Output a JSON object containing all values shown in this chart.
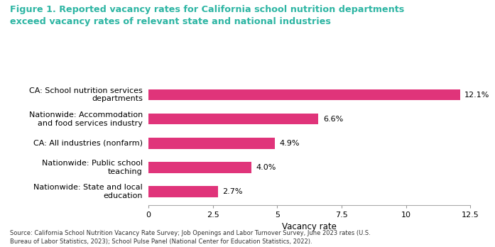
{
  "title_line1": "Figure 1. Reported vacancy rates for California school nutrition departments",
  "title_line2": "exceed vacancy rates of relevant state and national industries",
  "title_color": "#2db5a3",
  "categories": [
    "Nationwide: State and local\neducation",
    "Nationwide: Public school\nteaching",
    "CA: All industries (nonfarm)",
    "Nationwide: Accommodation\nand food services industry",
    "CA: School nutrition services\ndepartments"
  ],
  "values": [
    2.7,
    4.0,
    4.9,
    6.6,
    12.1
  ],
  "labels": [
    "2.7%",
    "4.0%",
    "4.9%",
    "6.6%",
    "12.1%"
  ],
  "bar_color": "#e0347a",
  "xlim": [
    0,
    12.5
  ],
  "xticks": [
    0,
    2.5,
    5,
    7.5,
    10,
    12.5
  ],
  "xlabel": "Vacancy rate",
  "source_text": "Source: California School Nutrition Vacancy Rate Survey; Job Openings and Labor Turnover Survey, June 2023 rates (U.S.\nBureau of Labor Statistics, 2023); School Pulse Panel (National Center for Education Statistics, 2022).",
  "background_color": "#ffffff"
}
